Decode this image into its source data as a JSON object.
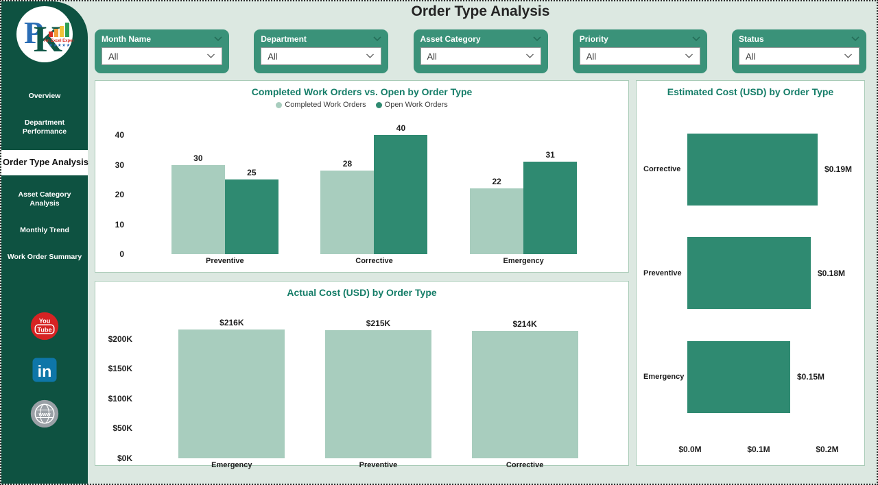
{
  "page": {
    "title": "Order Type Analysis",
    "background": "#dce8e1"
  },
  "sidebar": {
    "background": "#0e5241",
    "logo": "pk-an-excel-expert-logo",
    "nav": [
      {
        "label": "Overview",
        "active": false
      },
      {
        "label": "Department Performance",
        "active": false
      },
      {
        "label": "Order Type Analysis",
        "active": true
      },
      {
        "label": "Asset Category Analysis",
        "active": false
      },
      {
        "label": "Monthly Trend",
        "active": false
      },
      {
        "label": "Work Order Summary",
        "active": false
      }
    ],
    "social": [
      {
        "name": "youtube"
      },
      {
        "name": "linkedin"
      },
      {
        "name": "website"
      }
    ]
  },
  "filters": [
    {
      "label": "Month Name",
      "value": "All"
    },
    {
      "label": "Department",
      "value": "All"
    },
    {
      "label": "Asset Category",
      "value": "All"
    },
    {
      "label": "Priority",
      "value": "All"
    },
    {
      "label": "Status",
      "value": "All"
    }
  ],
  "colors": {
    "sidebar_green": "#0e5241",
    "filter_card_green": "#3a9279",
    "chart_title_teal": "#157d68",
    "series_light_green": "#a8cdbe",
    "series_dark_green": "#2f8a71",
    "card_border": "#a9cbb7",
    "page_background": "#dce8e1"
  },
  "chart_data": [
    {
      "type": "bar",
      "title": "Completed Work Orders vs. Open by Order Type",
      "categories": [
        "Preventive",
        "Corrective",
        "Emergency"
      ],
      "series": [
        {
          "name": "Completed Work Orders",
          "color": "#a8cdbe",
          "values": [
            30,
            28,
            22
          ]
        },
        {
          "name": "Open Work Orders",
          "color": "#2f8a71",
          "values": [
            25,
            40,
            31
          ]
        }
      ],
      "ylim": [
        0,
        40
      ],
      "yticks": [
        40,
        30,
        20,
        10,
        0
      ],
      "legend_position": "top",
      "grid": false,
      "data_labels": true
    },
    {
      "type": "bar",
      "title": "Actual Cost (USD) by Order Type",
      "categories": [
        "Emergency",
        "Preventive",
        "Corrective"
      ],
      "values": [
        216000,
        215000,
        214000
      ],
      "data_labels": [
        "$216K",
        "$215K",
        "$214K"
      ],
      "color": "#a8cdbe",
      "ylim": [
        0,
        225000
      ],
      "yticks": [
        {
          "label": "$200K",
          "value": 200000
        },
        {
          "label": "$150K",
          "value": 150000
        },
        {
          "label": "$100K",
          "value": 100000
        },
        {
          "label": "$50K",
          "value": 50000
        },
        {
          "label": "$0K",
          "value": 0
        }
      ],
      "grid": false
    },
    {
      "type": "bar-horizontal",
      "title": "Estimated Cost (USD) by Order Type",
      "categories": [
        "Corrective",
        "Preventive",
        "Emergency"
      ],
      "values": [
        0.19,
        0.18,
        0.15
      ],
      "data_labels": [
        "$0.19M",
        "$0.18M",
        "$0.15M"
      ],
      "color": "#2f8a71",
      "xlim": [
        0,
        0.2
      ],
      "xticks": [
        {
          "label": "$0.0M",
          "value": 0
        },
        {
          "label": "$0.1M",
          "value": 0.1
        },
        {
          "label": "$0.2M",
          "value": 0.2
        }
      ],
      "grid": false
    }
  ]
}
